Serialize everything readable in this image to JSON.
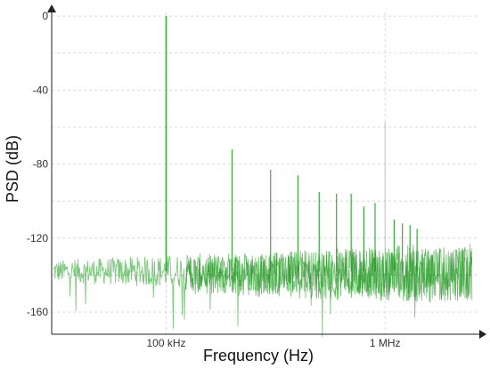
{
  "chart_data": {
    "type": "line",
    "title": "",
    "xlabel": "Frequency (Hz)",
    "ylabel": "PSD (dB)",
    "x_scale": "log",
    "xlim": [
      30000,
      2500000
    ],
    "ylim": [
      -172,
      2
    ],
    "x_ticks": [
      {
        "value": 100000,
        "label": "100 kHz"
      },
      {
        "value": 1000000,
        "label": "1 MHz"
      }
    ],
    "y_ticks": [
      {
        "value": 0,
        "label": "0"
      },
      {
        "value": -40,
        "label": "-40"
      },
      {
        "value": -80,
        "label": "-80"
      },
      {
        "value": -120,
        "label": "-120"
      },
      {
        "value": -160,
        "label": "-160"
      }
    ],
    "grid": true,
    "series": [
      {
        "color": "#1a9a1a",
        "noise_floor_db": -138,
        "tones": [
          {
            "x": 100000,
            "y": 0
          },
          {
            "x": 200000,
            "y": -72
          },
          {
            "x": 300000,
            "y": -83
          },
          {
            "x": 400000,
            "y": -86
          },
          {
            "x": 500000,
            "y": -95
          },
          {
            "x": 600000,
            "y": -96
          },
          {
            "x": 700000,
            "y": -96
          },
          {
            "x": 800000,
            "y": -103
          },
          {
            "x": 900000,
            "y": -101
          },
          {
            "x": 1000000,
            "y": -57
          },
          {
            "x": 1100000,
            "y": -110
          },
          {
            "x": 1200000,
            "y": -112
          },
          {
            "x": 1300000,
            "y": -113
          },
          {
            "x": 1400000,
            "y": -115
          }
        ]
      }
    ]
  }
}
